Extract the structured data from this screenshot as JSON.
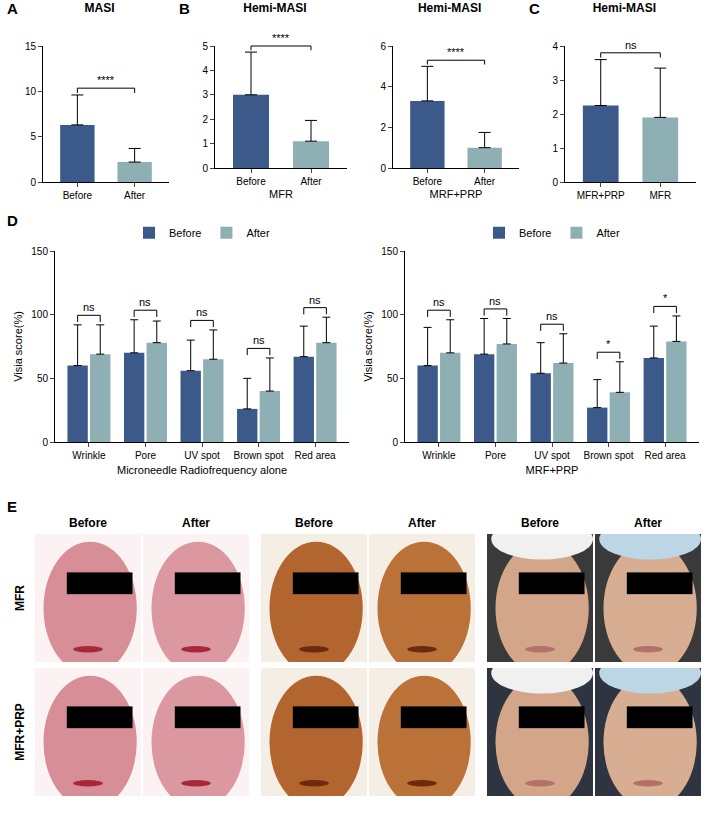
{
  "chart_data": [
    {
      "panel": "A",
      "type": "bar",
      "title": "MASI",
      "categories": [
        "Before",
        "After"
      ],
      "values": [
        6.3,
        2.2
      ],
      "errors": [
        3.3,
        1.5
      ],
      "colors": [
        "#3b5a8a",
        "#8eafb3"
      ],
      "ylim": [
        0,
        15
      ],
      "yticks": [
        0,
        5,
        10,
        15
      ],
      "significance": [
        {
          "pair": [
            0,
            1
          ],
          "label": "****"
        }
      ]
    },
    {
      "panel": "B",
      "type": "bar",
      "title": "Hemi-MASI",
      "x_label": "MFR",
      "categories": [
        "Before",
        "After"
      ],
      "values": [
        3.0,
        1.1
      ],
      "errors": [
        1.75,
        0.85
      ],
      "colors": [
        "#3b5a8a",
        "#8eafb3"
      ],
      "ylim": [
        0,
        5
      ],
      "yticks": [
        0,
        1,
        2,
        3,
        4,
        5
      ],
      "significance": [
        {
          "pair": [
            0,
            1
          ],
          "label": "****"
        }
      ]
    },
    {
      "type": "bar",
      "title": "Hemi-MASI",
      "x_label": "MRF+PRP",
      "categories": [
        "Before",
        "After"
      ],
      "values": [
        3.3,
        1.0
      ],
      "errors": [
        1.7,
        0.75
      ],
      "colors": [
        "#3b5a8a",
        "#8eafb3"
      ],
      "ylim": [
        0,
        6
      ],
      "yticks": [
        0,
        2,
        4,
        6
      ],
      "significance": [
        {
          "pair": [
            0,
            1
          ],
          "label": "****"
        }
      ]
    },
    {
      "panel": "C",
      "type": "bar",
      "title": "Hemi-MASI",
      "categories": [
        "MFR+PRP",
        "MFR"
      ],
      "values": [
        2.25,
        1.9
      ],
      "errors": [
        1.35,
        1.45
      ],
      "colors": [
        "#3b5a8a",
        "#8eafb3"
      ],
      "ylim": [
        0,
        4
      ],
      "yticks": [
        0,
        1,
        2,
        3,
        4
      ],
      "significance": [
        {
          "pair": [
            0,
            1
          ],
          "label": "ns"
        }
      ]
    },
    {
      "panel": "D",
      "type": "grouped_bar",
      "x_label": "Microneedle Radiofrequency alone",
      "y_label": "Visia score(%)",
      "categories": [
        "Wrinkle",
        "Pore",
        "UV spot",
        "Brown spot",
        "Red area"
      ],
      "series": [
        {
          "name": "Before",
          "color": "#3b5a8a",
          "values": [
            60,
            70,
            56,
            26,
            67
          ],
          "errors": [
            32,
            26,
            24,
            24,
            24
          ]
        },
        {
          "name": "After",
          "color": "#8eafb3",
          "values": [
            69,
            78,
            65,
            40,
            78
          ],
          "errors": [
            23,
            17,
            23,
            26,
            20
          ]
        }
      ],
      "ylim": [
        0,
        150
      ],
      "yticks": [
        0,
        50,
        100,
        150
      ],
      "legend": "top",
      "significance": [
        "ns",
        "ns",
        "ns",
        "ns",
        "ns"
      ]
    },
    {
      "type": "grouped_bar",
      "x_label": "MRF+PRP",
      "y_label": "Visia score(%)",
      "categories": [
        "Wrinkle",
        "Pore",
        "UV spot",
        "Brown spot",
        "Red area"
      ],
      "series": [
        {
          "name": "Before",
          "color": "#3b5a8a",
          "values": [
            60,
            69,
            54,
            27,
            66
          ],
          "errors": [
            30,
            28,
            24,
            22,
            25
          ]
        },
        {
          "name": "After",
          "color": "#8eafb3",
          "values": [
            70,
            77,
            62,
            39,
            79
          ],
          "errors": [
            26,
            20,
            23,
            24,
            20
          ]
        }
      ],
      "ylim": [
        0,
        150
      ],
      "yticks": [
        0,
        50,
        100,
        150
      ],
      "legend": "top",
      "significance": [
        "ns",
        "ns",
        "ns",
        "*",
        "*"
      ]
    }
  ],
  "photos": {
    "panel": "E",
    "rows": [
      "MFR",
      "MFR+PRP"
    ],
    "column_heads": [
      "Before",
      "After",
      "Before",
      "After",
      "Before",
      "After"
    ]
  }
}
